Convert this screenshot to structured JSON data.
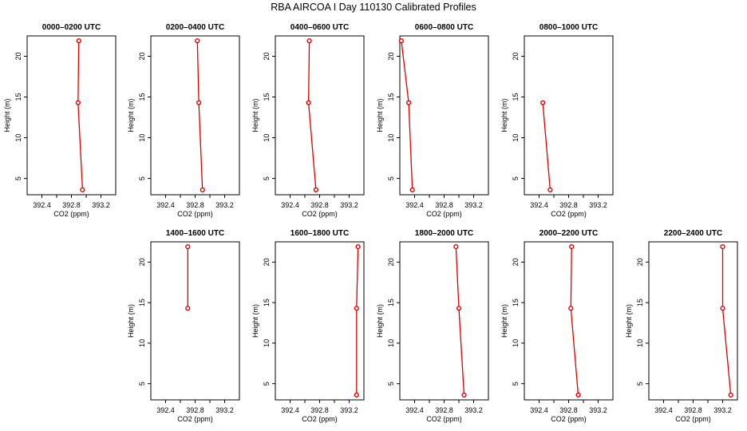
{
  "title": "RBA AIRCOA I  Day 110130  Calibrated Profiles",
  "colors": {
    "series": "#dd0000",
    "axis": "#000000",
    "background": "#ffffff"
  },
  "chart_data": [
    {
      "type": "line",
      "title": "0000–0200 UTC",
      "xlabel": "CO2 (ppm)",
      "ylabel": "Height (m)",
      "xticks": [
        "392.4",
        "392.8",
        "393.2"
      ],
      "yticks": [
        "5",
        "10",
        "15",
        "20"
      ],
      "xlim": [
        392.2,
        393.4
      ],
      "ylim": [
        3.0,
        22.5
      ],
      "series": [
        {
          "values": [
            [
              392.9,
              21.9
            ],
            [
              392.89,
              14.3
            ],
            [
              392.95,
              3.6
            ]
          ]
        }
      ]
    },
    {
      "type": "line",
      "title": "0200–0400 UTC",
      "xlabel": "CO2 (ppm)",
      "ylabel": "Height (m)",
      "xticks": [
        "392.4",
        "392.8",
        "393.2"
      ],
      "yticks": [
        "5",
        "10",
        "15",
        "20"
      ],
      "xlim": [
        392.2,
        393.4
      ],
      "ylim": [
        3.0,
        22.5
      ],
      "series": [
        {
          "values": [
            [
              392.83,
              21.9
            ],
            [
              392.85,
              14.3
            ],
            [
              392.9,
              3.6
            ]
          ]
        }
      ]
    },
    {
      "type": "line",
      "title": "0400–0600 UTC",
      "xlabel": "CO2 (ppm)",
      "ylabel": "Height (m)",
      "xticks": [
        "392.4",
        "392.8",
        "393.2"
      ],
      "yticks": [
        "5",
        "10",
        "15",
        "20"
      ],
      "xlim": [
        392.2,
        393.4
      ],
      "ylim": [
        3.0,
        22.5
      ],
      "series": [
        {
          "values": [
            [
              392.66,
              21.9
            ],
            [
              392.65,
              14.3
            ],
            [
              392.75,
              3.6
            ]
          ]
        }
      ]
    },
    {
      "type": "line",
      "title": "0600–0800 UTC",
      "xlabel": "CO2 (ppm)",
      "ylabel": "Height (m)",
      "xticks": [
        "392.4",
        "392.8",
        "393.2"
      ],
      "yticks": [
        "5",
        "10",
        "15",
        "20"
      ],
      "xlim": [
        392.2,
        393.4
      ],
      "ylim": [
        3.0,
        22.5
      ],
      "series": [
        {
          "values": [
            [
              392.22,
              21.9
            ],
            [
              392.32,
              14.3
            ],
            [
              392.37,
              3.6
            ]
          ]
        }
      ]
    },
    {
      "type": "line",
      "title": "0800–1000 UTC",
      "xlabel": "CO2 (ppm)",
      "ylabel": "Height (m)",
      "xticks": [
        "392.4",
        "392.8",
        "393.2"
      ],
      "yticks": [
        "5",
        "10",
        "15",
        "20"
      ],
      "xlim": [
        392.2,
        393.4
      ],
      "ylim": [
        3.0,
        22.5
      ],
      "series": [
        {
          "values": [
            [
              392.45,
              14.3
            ],
            [
              392.55,
              3.6
            ]
          ]
        }
      ]
    },
    {
      "type": "line",
      "title": "1400–1600 UTC",
      "xlabel": "CO2 (ppm)",
      "ylabel": "Height (m)",
      "xticks": [
        "392.4",
        "392.8",
        "393.2"
      ],
      "yticks": [
        "5",
        "10",
        "15",
        "20"
      ],
      "xlim": [
        392.2,
        393.4
      ],
      "ylim": [
        3.0,
        22.5
      ],
      "series": [
        {
          "values": [
            [
              392.7,
              21.9
            ],
            [
              392.7,
              14.3
            ]
          ]
        }
      ]
    },
    {
      "type": "line",
      "title": "1600–1800 UTC",
      "xlabel": "CO2 (ppm)",
      "ylabel": "Height (m)",
      "xticks": [
        "392.4",
        "392.8",
        "393.2"
      ],
      "yticks": [
        "5",
        "10",
        "15",
        "20"
      ],
      "xlim": [
        392.2,
        393.4
      ],
      "ylim": [
        3.0,
        22.5
      ],
      "series": [
        {
          "values": [
            [
              393.32,
              21.9
            ],
            [
              393.3,
              14.3
            ],
            [
              393.3,
              3.6
            ]
          ]
        }
      ]
    },
    {
      "type": "line",
      "title": "1800–2000 UTC",
      "xlabel": "CO2 (ppm)",
      "ylabel": "Height (m)",
      "xticks": [
        "392.4",
        "392.8",
        "393.2"
      ],
      "yticks": [
        "5",
        "10",
        "15",
        "20"
      ],
      "xlim": [
        392.2,
        393.4
      ],
      "ylim": [
        3.0,
        22.5
      ],
      "series": [
        {
          "values": [
            [
              392.96,
              21.9
            ],
            [
              393.0,
              14.3
            ],
            [
              393.07,
              3.6
            ]
          ]
        }
      ]
    },
    {
      "type": "line",
      "title": "2000–2200 UTC",
      "xlabel": "CO2 (ppm)",
      "ylabel": "Height (m)",
      "xticks": [
        "392.4",
        "392.8",
        "393.2"
      ],
      "yticks": [
        "5",
        "10",
        "15",
        "20"
      ],
      "xlim": [
        392.2,
        393.4
      ],
      "ylim": [
        3.0,
        22.5
      ],
      "series": [
        {
          "values": [
            [
              392.84,
              21.9
            ],
            [
              392.83,
              14.3
            ],
            [
              392.93,
              3.6
            ]
          ]
        }
      ]
    },
    {
      "type": "line",
      "title": "2200–2400 UTC",
      "xlabel": "CO2 (ppm)",
      "ylabel": "Height (m)",
      "xticks": [
        "392.4",
        "392.8",
        "393.2"
      ],
      "yticks": [
        "5",
        "10",
        "15",
        "20"
      ],
      "xlim": [
        392.2,
        393.4
      ],
      "ylim": [
        3.0,
        22.5
      ],
      "series": [
        {
          "values": [
            [
              393.2,
              21.9
            ],
            [
              393.2,
              14.3
            ],
            [
              393.31,
              3.6
            ]
          ]
        }
      ]
    }
  ]
}
